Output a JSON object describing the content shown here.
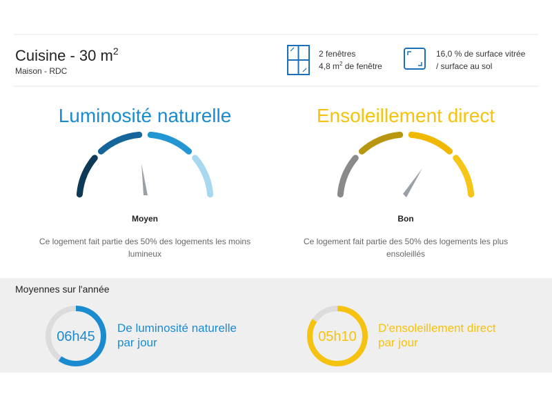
{
  "header": {
    "title": "Cuisine - 30 m",
    "title_exponent": "2",
    "subtitle": "Maison - RDC",
    "windows": {
      "count": "2 fenêtres",
      "area": "4,8 m",
      "area_exponent": "2",
      "area_suffix": " de fenêtre"
    },
    "glazing": {
      "ratio": "16,0 % de surface vitrée",
      "ratio_basis": "/ surface au sol"
    }
  },
  "gauges": [
    {
      "title": "Luminosité naturelle",
      "level": "Moyen",
      "description": [
        "Ce logement fait partie des 50% des logements les moins",
        "lumineux"
      ]
    },
    {
      "title": "Ensoleillement direct",
      "level": "Bon",
      "description": [
        "Ce logement fait partie des 50% des logements les plus",
        "ensoleillés"
      ]
    }
  ],
  "yearly_averages": {
    "title": "Moyennes sur l'année",
    "items": [
      {
        "time": "06h45",
        "label": [
          "De luminosité naturelle",
          "par jour"
        ]
      },
      {
        "time": "05h10",
        "label": [
          "D'ensoleillement direct",
          "par jour"
        ]
      }
    ]
  }
}
